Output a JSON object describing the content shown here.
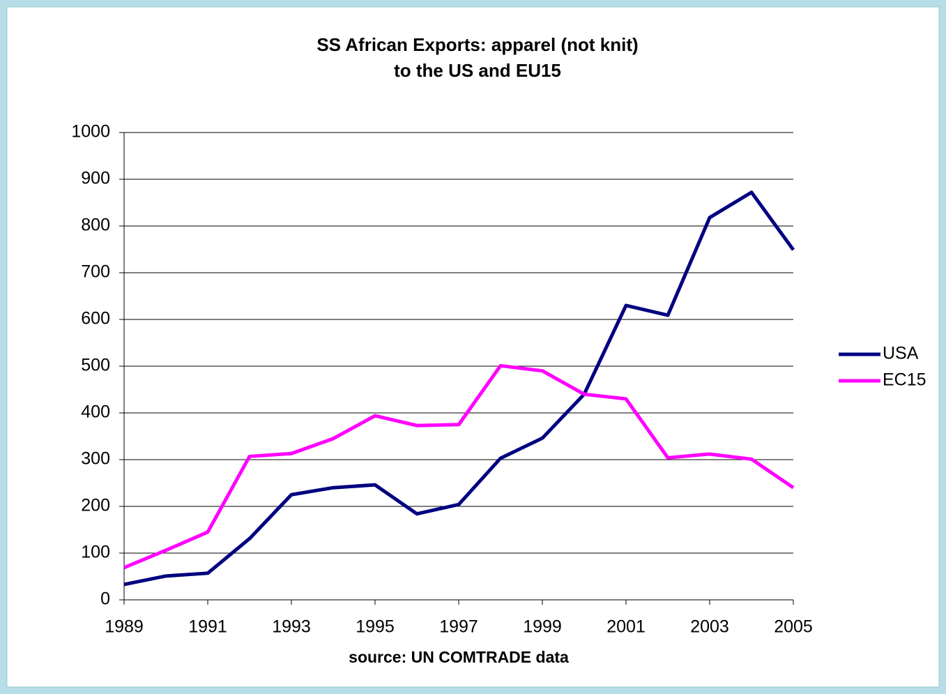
{
  "chart_data": {
    "type": "line",
    "title": [
      "SS African Exports: apparel (not knit)",
      "to the US and EU15"
    ],
    "x_label": "source: UN COMTRADE data",
    "x": [
      1989,
      1990,
      1991,
      1992,
      1993,
      1994,
      1995,
      1996,
      1997,
      1998,
      1999,
      2000,
      2001,
      2002,
      2003,
      2004,
      2005
    ],
    "series": [
      {
        "name": "USA",
        "color": "#000080",
        "values": [
          33,
          51,
          57,
          131,
          225,
          240,
          246,
          184,
          204,
          303,
          346,
          440,
          630,
          609,
          818,
          872,
          749
        ]
      },
      {
        "name": "EC15",
        "color": "#ff00ff",
        "values": [
          69,
          106,
          145,
          307,
          313,
          345,
          394,
          373,
          375,
          501,
          490,
          440,
          430,
          304,
          312,
          301,
          240
        ]
      }
    ],
    "xlim": [
      1989,
      2005
    ],
    "xticks": [
      1989,
      1991,
      1993,
      1995,
      1997,
      1999,
      2001,
      2003,
      2005
    ],
    "ylim": [
      0,
      1000
    ],
    "yticks": [
      0,
      100,
      200,
      300,
      400,
      500,
      600,
      700,
      800,
      900,
      1000
    ],
    "grid": true,
    "legend": "right"
  }
}
